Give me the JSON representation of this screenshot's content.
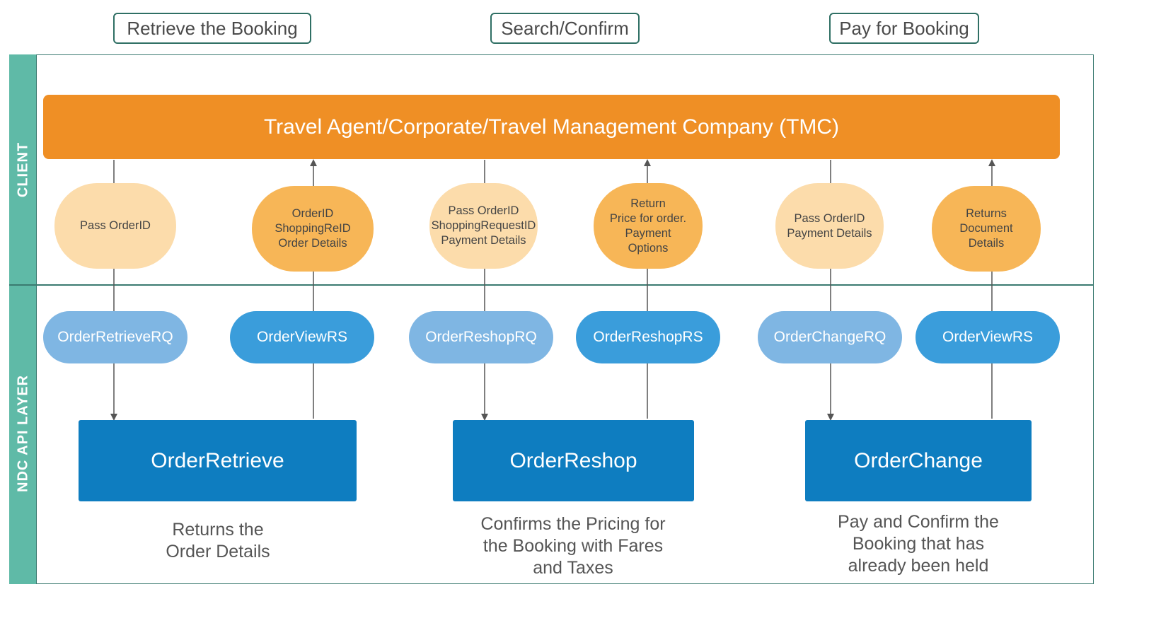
{
  "phases": [
    "Retrieve the Booking",
    "Search/Confirm",
    "Pay for Booking"
  ],
  "lanes": {
    "client": "CLIENT",
    "api": "NDC API LAYER"
  },
  "client_bar": "Travel Agent/Corporate/Travel Management Company (TMC)",
  "messages": [
    {
      "lines": [
        "Pass OrderID"
      ]
    },
    {
      "lines": [
        "OrderID",
        "ShoppingReID",
        "Order Details"
      ]
    },
    {
      "lines": [
        "Pass OrderID",
        "ShoppingRequestID",
        "Payment Details"
      ]
    },
    {
      "lines": [
        "Return",
        "Price for order.",
        "Payment",
        "Options"
      ]
    },
    {
      "lines": [
        "Pass OrderID",
        "Payment Details"
      ]
    },
    {
      "lines": [
        "Returns",
        "Document",
        "Details"
      ]
    }
  ],
  "api_calls": [
    "OrderRetrieveRQ",
    "OrderViewRS",
    "OrderReshopRQ",
    "OrderReshopRS",
    "OrderChangeRQ",
    "OrderViewRS"
  ],
  "operations": [
    "OrderRetrieve",
    "OrderReshop",
    "OrderChange"
  ],
  "descriptions": [
    {
      "lines": [
        "Returns the",
        "Order Details"
      ]
    },
    {
      "lines": [
        "Confirms the Pricing for",
        "the Booking with Fares",
        "and Taxes"
      ]
    },
    {
      "lines": [
        "Pay and Confirm the",
        "Booking that has",
        "already been held"
      ]
    }
  ],
  "colors": {
    "client_bar": "#ef8f25",
    "message_light": "#fcdcab",
    "message_dark": "#f7b657",
    "api_light": "#7fb6e3",
    "api_dark": "#3a9ddb",
    "operation": "#0e7dc0",
    "lane": "#5fbaa7",
    "connector": "#555555"
  }
}
